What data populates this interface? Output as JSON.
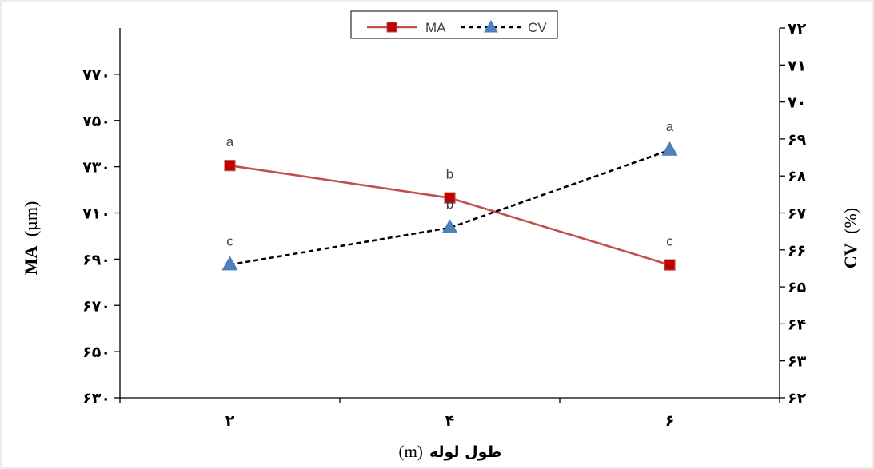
{
  "chart_data": {
    "type": "line",
    "categories": [
      "۲",
      "۴",
      "۶"
    ],
    "xlabel": {
      "fa": "طول لوله",
      "unit": "(m)"
    },
    "y_left": {
      "label_bold": "MA",
      "label_unit": "(µm)",
      "ylim": [
        630,
        790
      ],
      "ticks": [
        {
          "value": 630,
          "label": "۶۳۰"
        },
        {
          "value": 650,
          "label": "۶۵۰"
        },
        {
          "value": 670,
          "label": "۶۷۰"
        },
        {
          "value": 690,
          "label": "۶۹۰"
        },
        {
          "value": 710,
          "label": "۷۱۰"
        },
        {
          "value": 730,
          "label": "۷۳۰"
        },
        {
          "value": 750,
          "label": "۷۵۰"
        },
        {
          "value": 770,
          "label": "۷۷۰"
        }
      ]
    },
    "y_right": {
      "label_bold": "CV",
      "label_unit": "(%)",
      "ylim": [
        62,
        72
      ],
      "ticks": [
        {
          "value": 62,
          "label": "۶۲"
        },
        {
          "value": 63,
          "label": "۶۳"
        },
        {
          "value": 64,
          "label": "۶۴"
        },
        {
          "value": 65,
          "label": "۶۵"
        },
        {
          "value": 66,
          "label": "۶۶"
        },
        {
          "value": 67,
          "label": "۶۷"
        },
        {
          "value": 68,
          "label": "۶۸"
        },
        {
          "value": 69,
          "label": "۶۹"
        },
        {
          "value": 70,
          "label": "۷۰"
        },
        {
          "value": 71,
          "label": "۷۱"
        },
        {
          "value": 72,
          "label": "۷۲"
        }
      ]
    },
    "series": [
      {
        "name": "MA",
        "axis": "left",
        "values": [
          730.5,
          716.5,
          687.5
        ],
        "labels": [
          "a",
          "b",
          "c"
        ],
        "color": "#c0504d",
        "marker_color": "#c00000",
        "marker": "square",
        "line_style": "solid"
      },
      {
        "name": "CV",
        "axis": "right",
        "values": [
          65.6,
          66.6,
          68.7
        ],
        "labels": [
          "c",
          "b",
          "a"
        ],
        "color": "#000000",
        "marker_color": "#4f81bd",
        "marker": "triangle",
        "line_style": "dashed"
      }
    ],
    "legend": {
      "position": "top-center"
    },
    "grid": false
  }
}
